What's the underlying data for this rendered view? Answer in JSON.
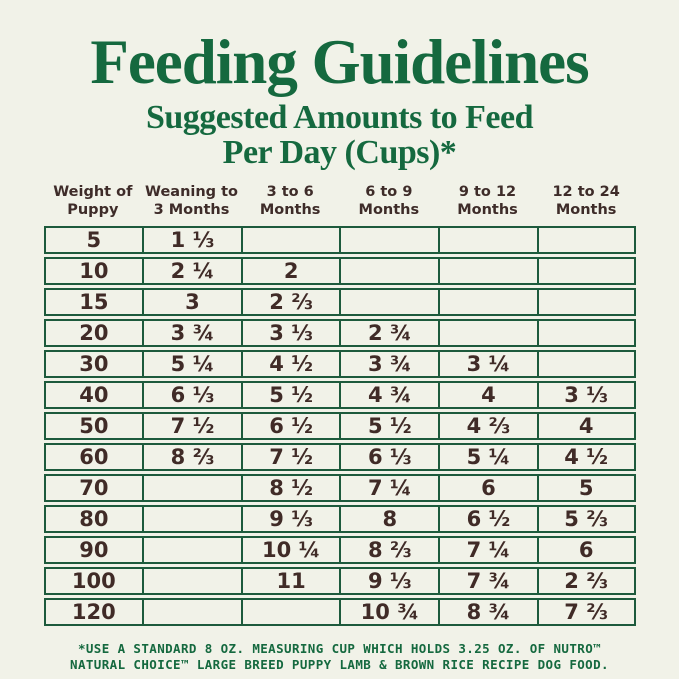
{
  "header": {
    "title": "Feeding Guidelines",
    "subtitle_line1": "Suggested Amounts to Feed",
    "subtitle_line2": "Per Day (Cups)*"
  },
  "table": {
    "column_headers": [
      "Weight of\nPuppy",
      "Weaning to\n3 Months",
      "3 to 6\nMonths",
      "6 to 9\nMonths",
      "9 to 12\nMonths",
      "12 to 24\nMonths"
    ]
  },
  "chart_data": {
    "type": "table",
    "title": "Feeding Guidelines",
    "subtitle": "Suggested Amounts to Feed Per Day (Cups)*",
    "columns": [
      "Weight of Puppy",
      "Weaning to 3 Months",
      "3 to 6 Months",
      "6 to 9 Months",
      "9 to 12 Months",
      "12 to 24 Months"
    ],
    "rows": [
      [
        "5",
        "1 ⅓",
        "",
        "",
        "",
        ""
      ],
      [
        "10",
        "2 ¼",
        "2",
        "",
        "",
        ""
      ],
      [
        "15",
        "3",
        "2 ⅔",
        "",
        "",
        ""
      ],
      [
        "20",
        "3 ¾",
        "3 ⅓",
        "2 ¾",
        "",
        ""
      ],
      [
        "30",
        "5 ¼",
        "4 ½",
        "3 ¾",
        "3 ¼",
        ""
      ],
      [
        "40",
        "6 ⅓",
        "5 ½",
        "4 ¾",
        "4",
        "3 ⅓"
      ],
      [
        "50",
        "7 ½",
        "6 ½",
        "5 ½",
        "4 ⅔",
        "4"
      ],
      [
        "60",
        "8 ⅔",
        "7 ½",
        "6 ⅓",
        "5 ¼",
        "4 ½"
      ],
      [
        "70",
        "",
        "8 ½",
        "7 ¼",
        "6",
        "5"
      ],
      [
        "80",
        "",
        "9 ⅓",
        "8",
        "6 ½",
        "5 ⅔"
      ],
      [
        "90",
        "",
        "10 ¼",
        "8 ⅔",
        "7 ¼",
        "6"
      ],
      [
        "100",
        "",
        "11",
        "9 ⅓",
        "7 ¾",
        "2 ⅔"
      ],
      [
        "120",
        "",
        "",
        "10 ¾",
        "8 ¾",
        "7 ⅔"
      ]
    ]
  },
  "footnote": {
    "line1": "*USE A STANDARD 8 OZ. MEASURING CUP WHICH HOLDS 3.25 OZ. OF NUTRO™",
    "line2": "NATURAL CHOICE™ LARGE BREED PUPPY LAMB & BROWN RICE RECIPE DOG FOOD."
  },
  "colors": {
    "background": "#f1f2e8",
    "brand_green": "#15693f",
    "table_border_green": "#1d5a3c",
    "text_brown": "#402b27"
  }
}
